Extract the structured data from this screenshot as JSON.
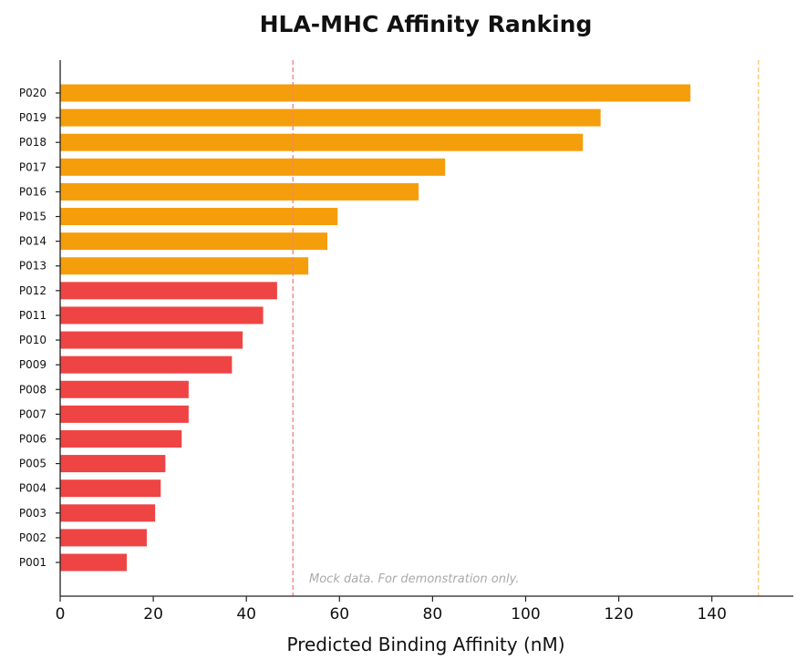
{
  "chart_data": {
    "type": "bar",
    "orientation": "horizontal",
    "title": "HLA-MHC Affinity Ranking",
    "xlabel": "Predicted Binding Affinity (nM)",
    "ylabel": "",
    "xlim": [
      0,
      157.5
    ],
    "xticks": [
      0,
      20,
      40,
      60,
      80,
      100,
      120,
      140
    ],
    "categories": [
      "P001",
      "P002",
      "P003",
      "P004",
      "P005",
      "P006",
      "P007",
      "P008",
      "P009",
      "P010",
      "P011",
      "P012",
      "P013",
      "P014",
      "P015",
      "P016",
      "P017",
      "P018",
      "P019",
      "P020"
    ],
    "values": [
      14.3,
      18.6,
      20.4,
      21.6,
      22.6,
      26.1,
      27.6,
      27.6,
      36.9,
      39.2,
      43.6,
      46.6,
      53.3,
      57.4,
      59.6,
      77.0,
      82.7,
      112.3,
      116.1,
      135.4
    ],
    "thresholds": [
      {
        "value": 50,
        "color": "#f08080"
      },
      {
        "value": 150,
        "color": "#f8c870"
      }
    ],
    "colors": {
      "strong": "#ef4444",
      "weak": "#f59e0b"
    },
    "strong_cutoff": 50,
    "annotation": "Mock data. For demonstration only.",
    "grid": false
  }
}
